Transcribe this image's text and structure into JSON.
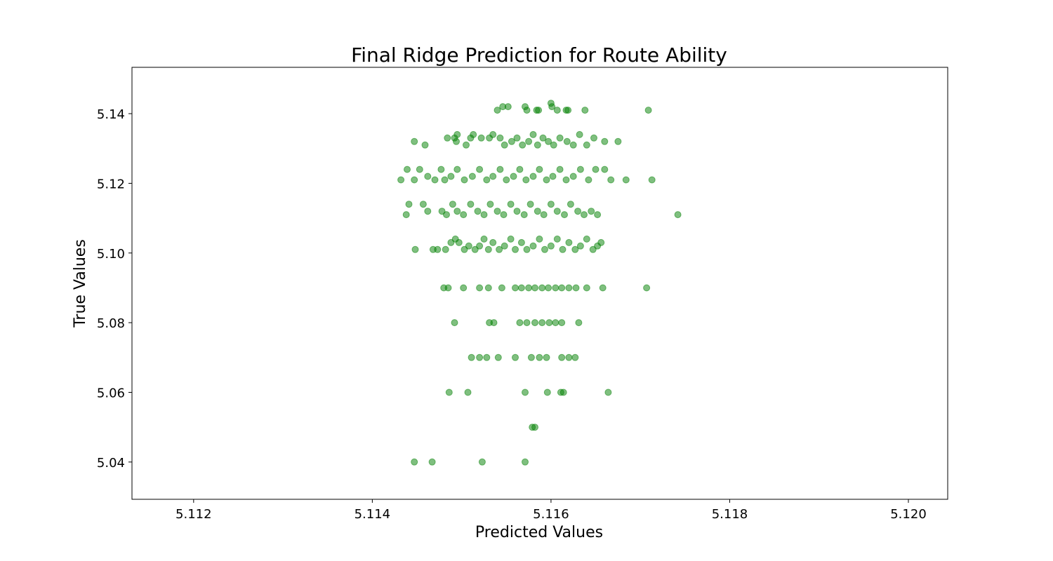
{
  "chart_data": {
    "type": "scatter",
    "title": "Final Ridge Prediction for Route Ability",
    "xlabel": "Predicted Values",
    "ylabel": "True Values",
    "xlim": [
      5.11131,
      5.12044
    ],
    "ylim": [
      5.0293,
      5.1533
    ],
    "xticks": [
      "5.112",
      "5.114",
      "5.116",
      "5.118",
      "5.120"
    ],
    "yticks": [
      "5.04",
      "5.06",
      "5.08",
      "5.10",
      "5.12",
      "5.14"
    ],
    "grid": false,
    "legend": "none",
    "marker_color": "#008000",
    "marker_alpha": 0.5,
    "series": [
      {
        "points": [
          [
            5.11546,
            5.142
          ],
          [
            5.11552,
            5.142
          ],
          [
            5.11571,
            5.142
          ],
          [
            5.11573,
            5.141
          ],
          [
            5.11584,
            5.141
          ],
          [
            5.11586,
            5.141
          ],
          [
            5.11601,
            5.142
          ],
          [
            5.116,
            5.143
          ],
          [
            5.11607,
            5.141
          ],
          [
            5.11619,
            5.141
          ],
          [
            5.11617,
            5.141
          ],
          [
            5.11638,
            5.141
          ],
          [
            5.11709,
            5.141
          ],
          [
            5.1154,
            5.141
          ],
          [
            5.11447,
            5.132
          ],
          [
            5.11459,
            5.131
          ],
          [
            5.11484,
            5.133
          ],
          [
            5.11492,
            5.133
          ],
          [
            5.11494,
            5.132
          ],
          [
            5.11495,
            5.134
          ],
          [
            5.11505,
            5.131
          ],
          [
            5.1151,
            5.133
          ],
          [
            5.11513,
            5.134
          ],
          [
            5.11522,
            5.133
          ],
          [
            5.11531,
            5.133
          ],
          [
            5.11535,
            5.134
          ],
          [
            5.11543,
            5.133
          ],
          [
            5.11548,
            5.131
          ],
          [
            5.11556,
            5.132
          ],
          [
            5.11562,
            5.133
          ],
          [
            5.11568,
            5.131
          ],
          [
            5.11575,
            5.132
          ],
          [
            5.1158,
            5.134
          ],
          [
            5.11585,
            5.131
          ],
          [
            5.11591,
            5.133
          ],
          [
            5.11597,
            5.132
          ],
          [
            5.11603,
            5.131
          ],
          [
            5.1161,
            5.133
          ],
          [
            5.11618,
            5.132
          ],
          [
            5.11625,
            5.131
          ],
          [
            5.11632,
            5.134
          ],
          [
            5.1164,
            5.131
          ],
          [
            5.11648,
            5.133
          ],
          [
            5.1166,
            5.132
          ],
          [
            5.11675,
            5.132
          ],
          [
            5.11432,
            5.121
          ],
          [
            5.11439,
            5.124
          ],
          [
            5.11447,
            5.121
          ],
          [
            5.11453,
            5.124
          ],
          [
            5.11462,
            5.122
          ],
          [
            5.1147,
            5.121
          ],
          [
            5.11477,
            5.124
          ],
          [
            5.11481,
            5.121
          ],
          [
            5.11488,
            5.122
          ],
          [
            5.11495,
            5.124
          ],
          [
            5.11503,
            5.121
          ],
          [
            5.11512,
            5.122
          ],
          [
            5.1152,
            5.124
          ],
          [
            5.11528,
            5.121
          ],
          [
            5.11535,
            5.122
          ],
          [
            5.11543,
            5.124
          ],
          [
            5.1155,
            5.121
          ],
          [
            5.11558,
            5.122
          ],
          [
            5.11565,
            5.124
          ],
          [
            5.11572,
            5.121
          ],
          [
            5.1158,
            5.122
          ],
          [
            5.11587,
            5.124
          ],
          [
            5.11595,
            5.121
          ],
          [
            5.11602,
            5.122
          ],
          [
            5.1161,
            5.124
          ],
          [
            5.11617,
            5.121
          ],
          [
            5.11625,
            5.122
          ],
          [
            5.11633,
            5.124
          ],
          [
            5.11642,
            5.121
          ],
          [
            5.1165,
            5.124
          ],
          [
            5.1166,
            5.124
          ],
          [
            5.11667,
            5.121
          ],
          [
            5.11684,
            5.121
          ],
          [
            5.11713,
            5.121
          ],
          [
            5.11441,
            5.114
          ],
          [
            5.11438,
            5.111
          ],
          [
            5.11457,
            5.114
          ],
          [
            5.11462,
            5.112
          ],
          [
            5.11478,
            5.112
          ],
          [
            5.11483,
            5.111
          ],
          [
            5.1149,
            5.114
          ],
          [
            5.11495,
            5.112
          ],
          [
            5.11502,
            5.111
          ],
          [
            5.1151,
            5.114
          ],
          [
            5.11518,
            5.112
          ],
          [
            5.11525,
            5.111
          ],
          [
            5.11532,
            5.114
          ],
          [
            5.1154,
            5.112
          ],
          [
            5.11547,
            5.111
          ],
          [
            5.11555,
            5.114
          ],
          [
            5.11562,
            5.112
          ],
          [
            5.1157,
            5.111
          ],
          [
            5.11577,
            5.114
          ],
          [
            5.11585,
            5.112
          ],
          [
            5.11592,
            5.111
          ],
          [
            5.116,
            5.114
          ],
          [
            5.11607,
            5.112
          ],
          [
            5.11615,
            5.111
          ],
          [
            5.11622,
            5.114
          ],
          [
            5.1163,
            5.112
          ],
          [
            5.11637,
            5.111
          ],
          [
            5.11645,
            5.112
          ],
          [
            5.11652,
            5.111
          ],
          [
            5.11742,
            5.111
          ],
          [
            5.11448,
            5.101
          ],
          [
            5.11468,
            5.101
          ],
          [
            5.11473,
            5.101
          ],
          [
            5.11482,
            5.101
          ],
          [
            5.11488,
            5.103
          ],
          [
            5.11493,
            5.104
          ],
          [
            5.11497,
            5.103
          ],
          [
            5.11503,
            5.101
          ],
          [
            5.11508,
            5.102
          ],
          [
            5.11515,
            5.101
          ],
          [
            5.1152,
            5.102
          ],
          [
            5.11525,
            5.104
          ],
          [
            5.1153,
            5.101
          ],
          [
            5.11535,
            5.103
          ],
          [
            5.11542,
            5.101
          ],
          [
            5.11548,
            5.102
          ],
          [
            5.11555,
            5.104
          ],
          [
            5.1156,
            5.101
          ],
          [
            5.11567,
            5.103
          ],
          [
            5.11573,
            5.101
          ],
          [
            5.1158,
            5.102
          ],
          [
            5.11587,
            5.104
          ],
          [
            5.11593,
            5.101
          ],
          [
            5.116,
            5.102
          ],
          [
            5.11607,
            5.104
          ],
          [
            5.11613,
            5.101
          ],
          [
            5.1162,
            5.103
          ],
          [
            5.11627,
            5.101
          ],
          [
            5.11633,
            5.102
          ],
          [
            5.1164,
            5.104
          ],
          [
            5.11647,
            5.101
          ],
          [
            5.11652,
            5.102
          ],
          [
            5.11656,
            5.103
          ],
          [
            5.1148,
            5.09
          ],
          [
            5.11485,
            5.09
          ],
          [
            5.11502,
            5.09
          ],
          [
            5.1152,
            5.09
          ],
          [
            5.1153,
            5.09
          ],
          [
            5.11545,
            5.09
          ],
          [
            5.1156,
            5.09
          ],
          [
            5.11567,
            5.09
          ],
          [
            5.11575,
            5.09
          ],
          [
            5.11582,
            5.09
          ],
          [
            5.1159,
            5.09
          ],
          [
            5.11597,
            5.09
          ],
          [
            5.11605,
            5.09
          ],
          [
            5.11612,
            5.09
          ],
          [
            5.1162,
            5.09
          ],
          [
            5.11628,
            5.09
          ],
          [
            5.1164,
            5.09
          ],
          [
            5.11658,
            5.09
          ],
          [
            5.11707,
            5.09
          ],
          [
            5.11492,
            5.08
          ],
          [
            5.11531,
            5.08
          ],
          [
            5.11536,
            5.08
          ],
          [
            5.11565,
            5.08
          ],
          [
            5.11573,
            5.08
          ],
          [
            5.11582,
            5.08
          ],
          [
            5.1159,
            5.08
          ],
          [
            5.11598,
            5.08
          ],
          [
            5.11605,
            5.08
          ],
          [
            5.11612,
            5.08
          ],
          [
            5.11631,
            5.08
          ],
          [
            5.11511,
            5.07
          ],
          [
            5.1152,
            5.07
          ],
          [
            5.11528,
            5.07
          ],
          [
            5.11541,
            5.07
          ],
          [
            5.1156,
            5.07
          ],
          [
            5.11578,
            5.07
          ],
          [
            5.11587,
            5.07
          ],
          [
            5.11595,
            5.07
          ],
          [
            5.11612,
            5.07
          ],
          [
            5.1162,
            5.07
          ],
          [
            5.11627,
            5.07
          ],
          [
            5.11486,
            5.06
          ],
          [
            5.11507,
            5.06
          ],
          [
            5.11571,
            5.06
          ],
          [
            5.11596,
            5.06
          ],
          [
            5.11611,
            5.06
          ],
          [
            5.11614,
            5.06
          ],
          [
            5.11664,
            5.06
          ],
          [
            5.11579,
            5.05
          ],
          [
            5.11582,
            5.05
          ],
          [
            5.11447,
            5.04
          ],
          [
            5.11467,
            5.04
          ],
          [
            5.11523,
            5.04
          ],
          [
            5.11571,
            5.04
          ]
        ]
      }
    ]
  }
}
